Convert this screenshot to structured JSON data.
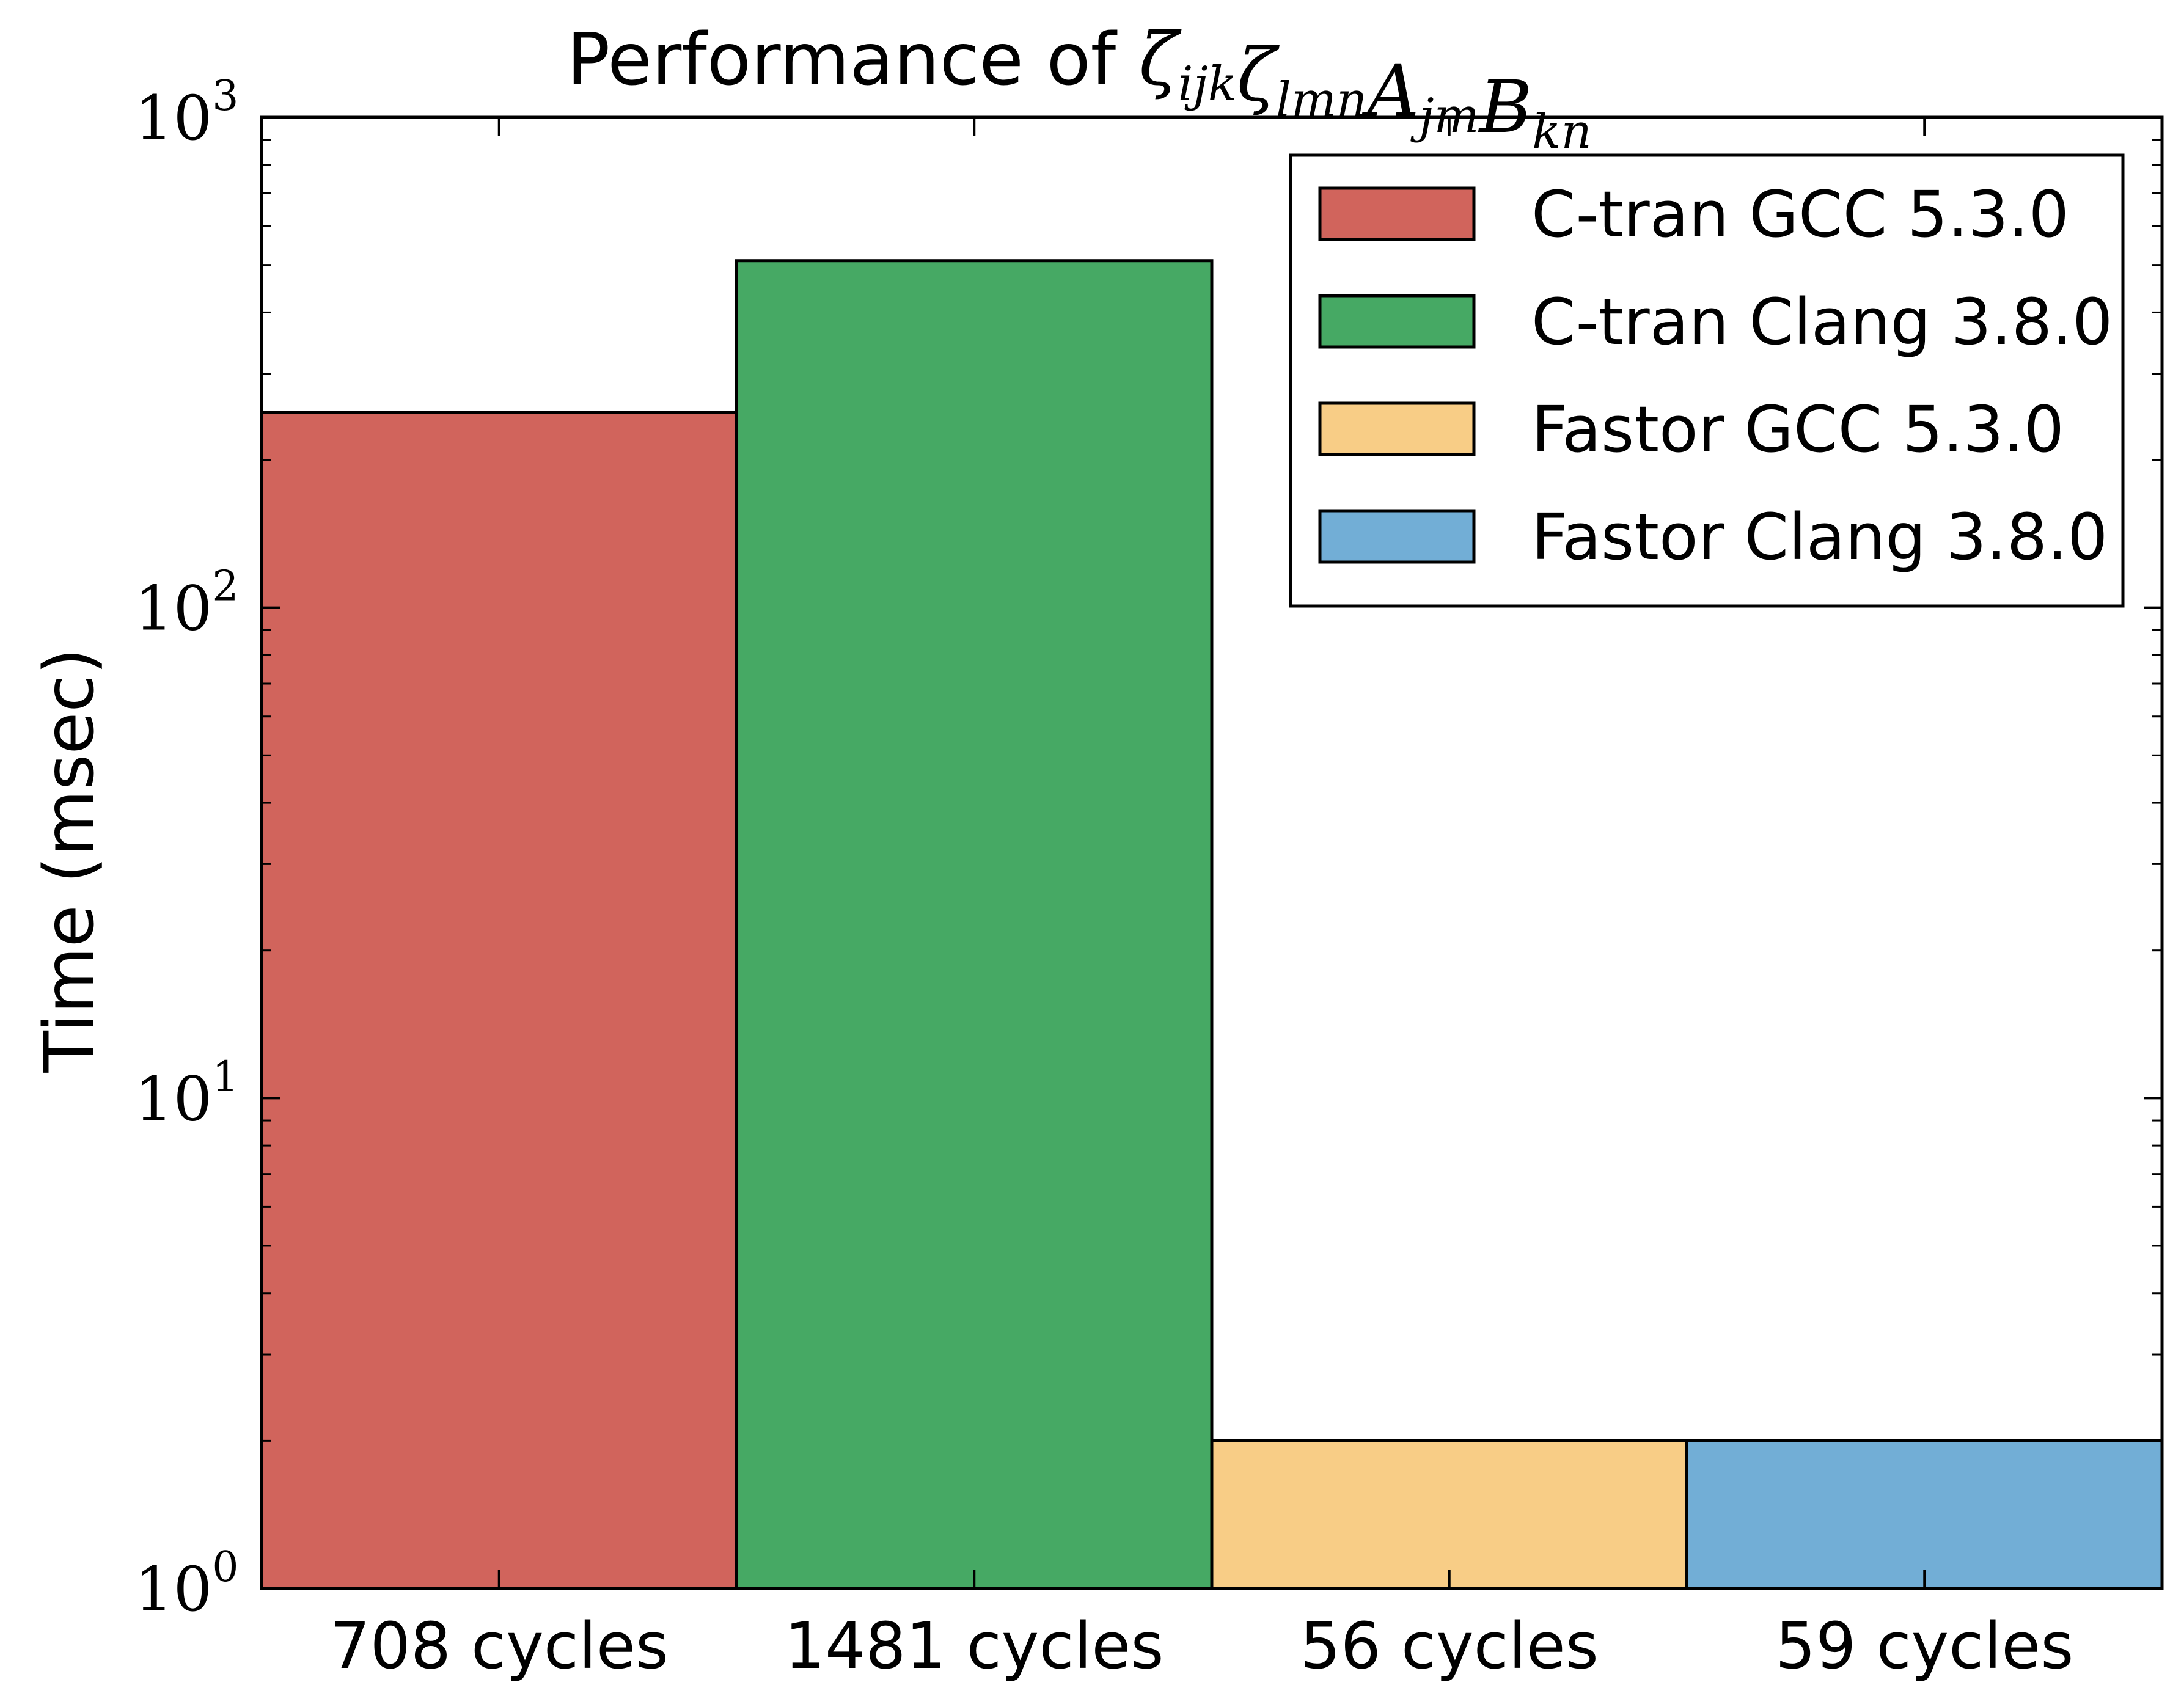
{
  "chart_data": {
    "type": "bar",
    "title": {
      "prefix": "Performance of ",
      "math": [
        "ζ",
        "ijk",
        "ζ",
        "lmn",
        "A",
        "jm",
        "B",
        "kn"
      ]
    },
    "ylabel": "Time (msec)",
    "xlabel": "",
    "yscale": "log",
    "ylim": [
      1,
      1000
    ],
    "yticks": [
      {
        "base": "10",
        "exp": "0",
        "value": 1
      },
      {
        "base": "10",
        "exp": "1",
        "value": 10
      },
      {
        "base": "10",
        "exp": "2",
        "value": 100
      },
      {
        "base": "10",
        "exp": "3",
        "value": 1000
      }
    ],
    "categories": [
      "708 cycles",
      "1481 cycles",
      "56 cycles",
      "59 cycles"
    ],
    "values": [
      250,
      510,
      2,
      2
    ],
    "series": [
      {
        "name": "C-tran GCC 5.3.0",
        "color": "#d1645c"
      },
      {
        "name": "C-tran Clang 3.8.0",
        "color": "#46a964"
      },
      {
        "name": "Fastor GCC 5.3.0",
        "color": "#f8cd86"
      },
      {
        "name": "Fastor Clang 3.8.0",
        "color": "#72aed6"
      }
    ],
    "legend_position": "top-right",
    "grid": false
  }
}
